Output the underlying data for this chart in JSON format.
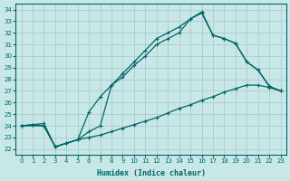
{
  "xlabel": "Humidex (Indice chaleur)",
  "bg_color": "#c8e8e8",
  "line_color": "#006666",
  "grid_color": "#b0d0d0",
  "xlim": [
    -0.5,
    23.5
  ],
  "ylim": [
    21.5,
    34.5
  ],
  "xticks": [
    0,
    1,
    2,
    3,
    4,
    5,
    6,
    7,
    8,
    9,
    10,
    11,
    12,
    13,
    14,
    15,
    16,
    17,
    18,
    19,
    20,
    21,
    22,
    23
  ],
  "yticks": [
    22,
    23,
    24,
    25,
    26,
    27,
    28,
    29,
    30,
    31,
    32,
    33,
    34
  ],
  "line1_x": [
    0,
    1,
    2,
    3,
    4,
    5,
    6,
    7,
    8,
    9,
    10,
    11,
    12,
    13,
    14,
    15,
    16,
    17,
    18,
    19,
    20,
    21,
    22,
    23
  ],
  "line1_y": [
    24.0,
    24.1,
    24.2,
    22.2,
    22.5,
    22.8,
    23.0,
    23.2,
    23.5,
    23.8,
    24.1,
    24.4,
    24.7,
    25.1,
    25.5,
    25.8,
    26.2,
    26.5,
    26.9,
    27.2,
    27.5,
    27.5,
    27.3,
    27.0
  ],
  "line2_x": [
    0,
    2,
    3,
    4,
    5,
    6,
    7,
    8,
    9,
    10,
    11,
    12,
    13,
    14,
    15,
    16,
    17,
    18,
    19,
    20,
    21,
    22,
    23
  ],
  "line2_y": [
    24.0,
    24.0,
    22.2,
    22.5,
    22.8,
    23.5,
    24.0,
    27.5,
    28.5,
    29.5,
    30.5,
    31.5,
    32.0,
    32.5,
    33.2,
    33.8,
    31.8,
    31.5,
    31.1,
    29.5,
    28.8,
    27.4,
    27.0
  ],
  "line3_x": [
    0,
    1,
    2,
    3,
    4,
    5,
    6,
    7,
    8,
    9,
    10,
    11,
    12,
    13,
    14,
    15,
    16,
    17,
    18,
    19,
    20,
    21,
    22,
    23
  ],
  "line3_y": [
    24.0,
    24.1,
    24.0,
    22.2,
    22.5,
    22.8,
    25.2,
    26.5,
    27.5,
    28.2,
    29.2,
    30.0,
    31.0,
    31.5,
    32.0,
    33.2,
    33.7,
    31.8,
    31.5,
    31.1,
    29.5,
    28.8,
    27.4,
    27.0
  ]
}
